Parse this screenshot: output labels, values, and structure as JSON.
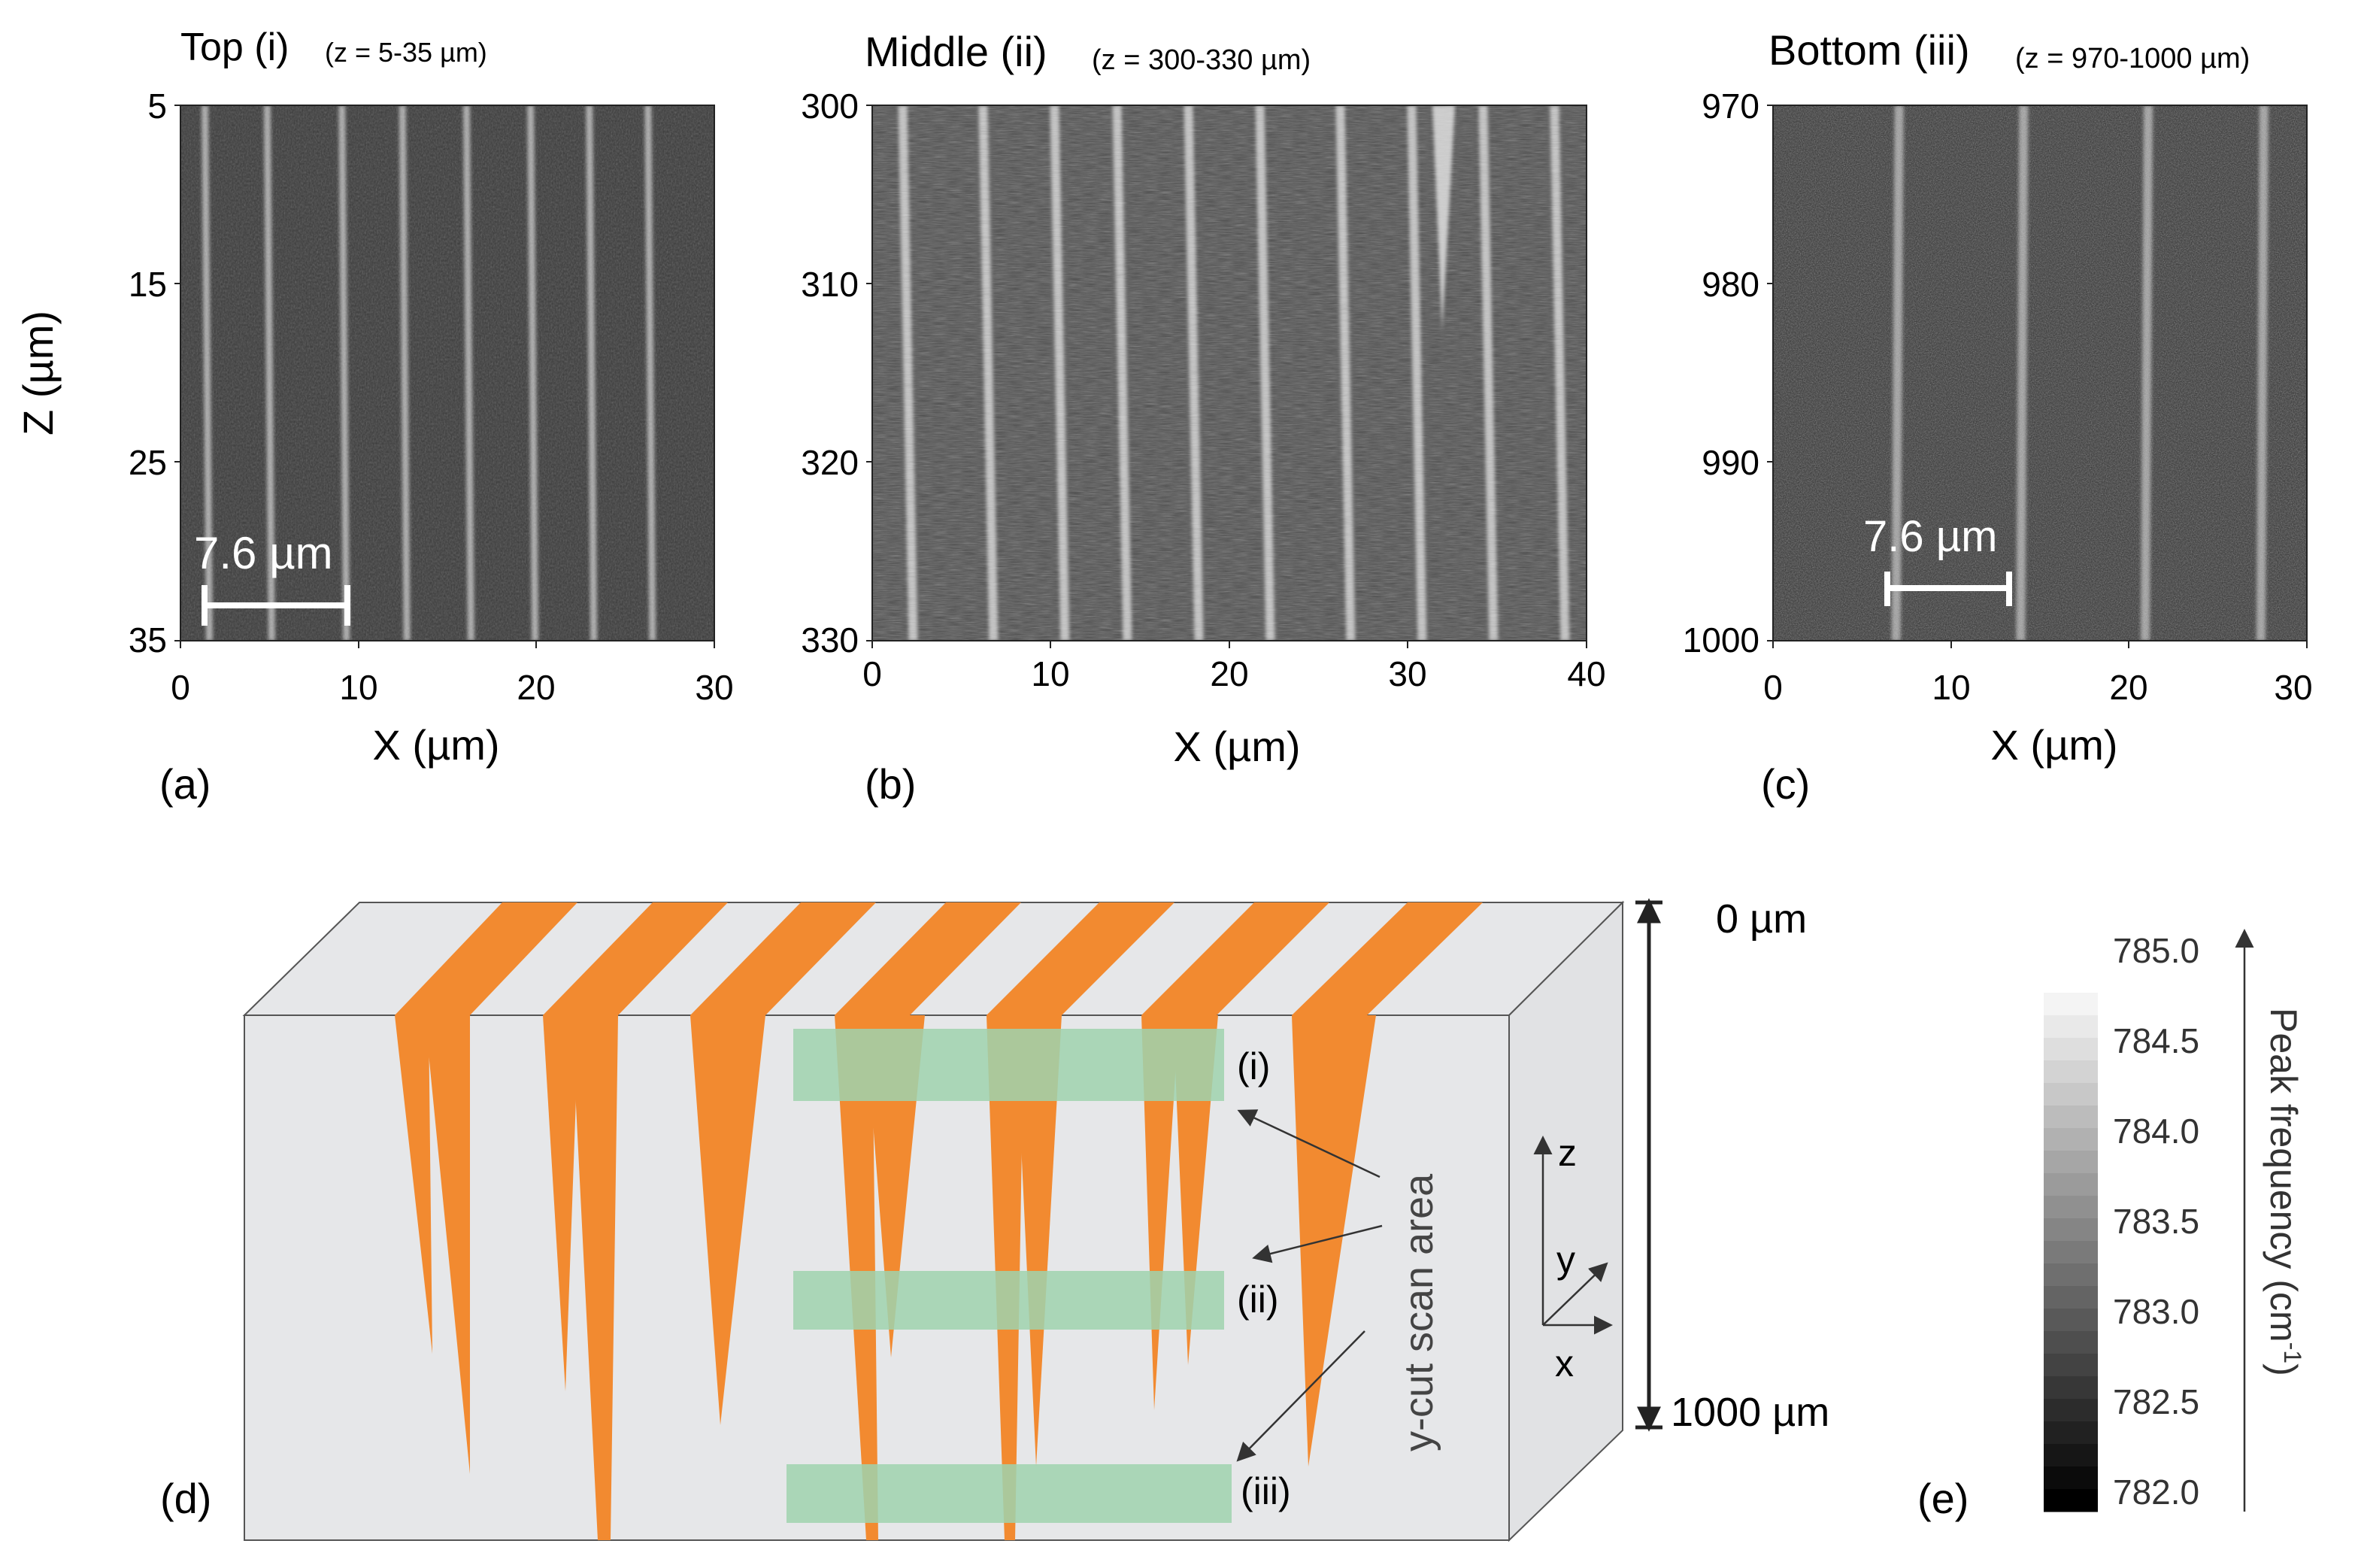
{
  "panels": [
    {
      "id": "a",
      "label": "(a)",
      "title": "Top (i)",
      "range_note": "(z = 5-35 µm)",
      "xlabel": "X (µm)",
      "x_range": [
        0,
        30
      ],
      "x_ticks": [
        "0",
        "10",
        "20",
        "30"
      ],
      "y_range": [
        5,
        35
      ],
      "y_ticks": [
        "5",
        "15",
        "25",
        "35"
      ],
      "scale_bar": "7.6 µm",
      "stripe_positions_um": [
        1.5,
        5.0,
        9.2,
        12.6,
        16.2,
        19.8,
        23.1,
        26.4
      ]
    },
    {
      "id": "b",
      "label": "(b)",
      "title": "Middle (ii)",
      "range_note": "(z = 300-330 µm)",
      "xlabel": "X (µm)",
      "x_range": [
        0,
        40
      ],
      "x_ticks": [
        "0",
        "10",
        "20",
        "30",
        "40"
      ],
      "y_range": [
        300,
        330
      ],
      "y_ticks": [
        "300",
        "310",
        "320",
        "330"
      ],
      "stripe_positions_um": [
        2.0,
        6.5,
        10.5,
        14.0,
        18.0,
        22.0,
        26.5,
        30.5,
        34.5,
        38.5
      ]
    },
    {
      "id": "c",
      "label": "(c)",
      "title": "Bottom (iii)",
      "range_note": "(z = 970-1000 µm)",
      "xlabel": "X (µm)",
      "x_range": [
        0,
        30
      ],
      "x_ticks": [
        "0",
        "10",
        "20",
        "30"
      ],
      "y_range": [
        970,
        1000
      ],
      "y_ticks": [
        "970",
        "980",
        "990",
        "1000"
      ],
      "scale_bar": "7.6 µm",
      "stripe_positions_um": [
        7.0,
        14.0,
        21.0,
        27.5
      ]
    }
  ],
  "shared_ylabel": "Z (µm)",
  "schematic": {
    "label": "(d)",
    "depth_top": "0 µm",
    "depth_bottom": "1000 µm",
    "scan_labels": [
      "(i)",
      "(ii)",
      "(iii)"
    ],
    "scan_area_label": "y-cut scan area",
    "axes": {
      "z": "z",
      "y": "y",
      "x": "x"
    },
    "colors": {
      "domain": "#f28a30",
      "scan": "#9fd2ae",
      "block": "#e6e7e9"
    }
  },
  "colorbar": {
    "label": "(e)",
    "title": "Peak frequency (cm",
    "title_sup": "-1",
    "title_close": ")",
    "min": 782.0,
    "max": 785.0,
    "ticks": [
      "785.0",
      "784.5",
      "784.0",
      "783.5",
      "783.0",
      "782.5",
      "782.0"
    ]
  }
}
